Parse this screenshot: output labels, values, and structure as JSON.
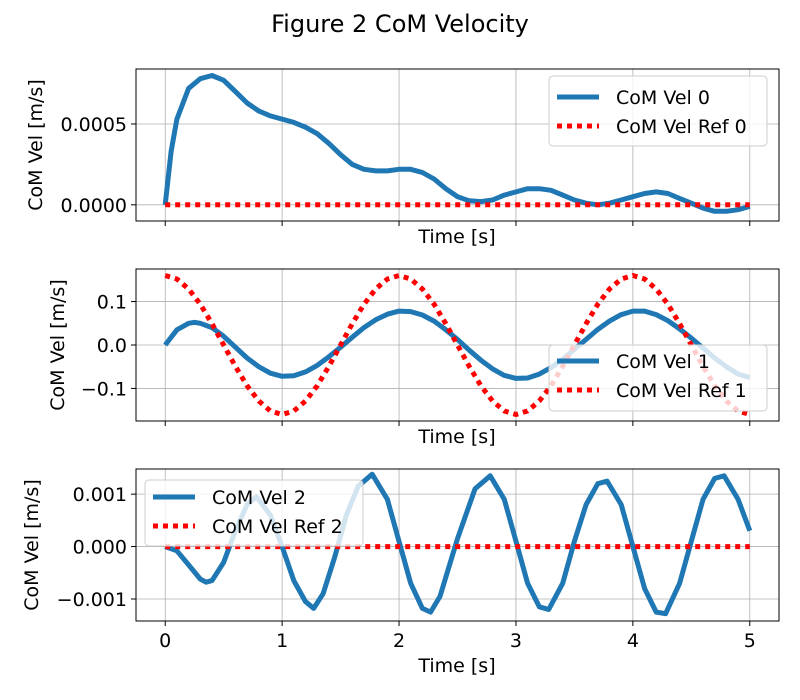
{
  "title": "Figure 2 CoM Velocity",
  "colors": {
    "measured": "#1f77b4",
    "reference": "#ff0000",
    "grid": "#b0b0b0"
  },
  "chart_data": [
    {
      "type": "line",
      "xlabel": "Time [s]",
      "ylabel": "CoM Vel [m/s]",
      "xlim": [
        -0.25,
        5.25
      ],
      "ylim": [
        -0.0001,
        0.00084
      ],
      "xticks": [
        0,
        1,
        2,
        3,
        4,
        5
      ],
      "show_xtick_labels": false,
      "yticks": [
        0.0,
        0.0005
      ],
      "ytick_labels": [
        "0.0000",
        "0.0005"
      ],
      "grid": true,
      "legend": "top-right",
      "series": [
        {
          "name": "CoM Vel 0",
          "style": "solid",
          "x": [
            0,
            0.05,
            0.1,
            0.2,
            0.3,
            0.4,
            0.5,
            0.6,
            0.7,
            0.8,
            0.9,
            1.0,
            1.1,
            1.2,
            1.3,
            1.4,
            1.5,
            1.6,
            1.7,
            1.8,
            1.9,
            2.0,
            2.1,
            2.2,
            2.3,
            2.4,
            2.5,
            2.6,
            2.7,
            2.8,
            2.9,
            3.0,
            3.1,
            3.2,
            3.3,
            3.4,
            3.5,
            3.6,
            3.7,
            3.8,
            3.9,
            4.0,
            4.1,
            4.2,
            4.3,
            4.4,
            4.5,
            4.6,
            4.7,
            4.8,
            4.9,
            5.0
          ],
          "y": [
            0.0,
            0.00033,
            0.00053,
            0.00072,
            0.00078,
            0.0008,
            0.00077,
            0.0007,
            0.00063,
            0.00058,
            0.00055,
            0.00053,
            0.00051,
            0.00048,
            0.00044,
            0.00038,
            0.00031,
            0.00025,
            0.00022,
            0.00021,
            0.00021,
            0.00022,
            0.00022,
            0.0002,
            0.00016,
            0.0001,
            5e-05,
            2.5e-05,
            2e-05,
            3e-05,
            6e-05,
            8e-05,
            0.0001,
            0.0001,
            9e-05,
            6e-05,
            3e-05,
            1e-05,
            0.0,
            1e-05,
            3e-05,
            5e-05,
            7e-05,
            8e-05,
            7e-05,
            4e-05,
            1e-05,
            -2e-05,
            -4e-05,
            -4e-05,
            -3e-05,
            -1e-05
          ]
        },
        {
          "name": "CoM Vel Ref 0",
          "style": "dotted",
          "x": [
            0,
            5
          ],
          "y": [
            0.0,
            0.0
          ]
        }
      ]
    },
    {
      "type": "line",
      "xlabel": "Time [s]",
      "ylabel": "CoM Vel [m/s]",
      "xlim": [
        -0.25,
        5.25
      ],
      "ylim": [
        -0.175,
        0.175
      ],
      "xticks": [
        0,
        1,
        2,
        3,
        4,
        5
      ],
      "show_xtick_labels": false,
      "yticks": [
        -0.1,
        0.0,
        0.1
      ],
      "ytick_labels": [
        "−0.1",
        "0.0",
        "0.1"
      ],
      "grid": true,
      "legend": "bottom-right",
      "series": [
        {
          "name": "CoM Vel 1",
          "style": "solid",
          "x": [
            0,
            0.1,
            0.2,
            0.25,
            0.3,
            0.4,
            0.5,
            0.6,
            0.7,
            0.8,
            0.9,
            1.0,
            1.1,
            1.2,
            1.3,
            1.4,
            1.5,
            1.6,
            1.7,
            1.8,
            1.9,
            2.0,
            2.1,
            2.2,
            2.3,
            2.4,
            2.5,
            2.6,
            2.7,
            2.8,
            2.9,
            3.0,
            3.1,
            3.2,
            3.3,
            3.4,
            3.5,
            3.6,
            3.7,
            3.8,
            3.9,
            4.0,
            4.1,
            4.2,
            4.3,
            4.4,
            4.5,
            4.6,
            4.7,
            4.8,
            4.9,
            5.0
          ],
          "y": [
            0.0,
            0.035,
            0.05,
            0.052,
            0.05,
            0.04,
            0.02,
            -0.005,
            -0.03,
            -0.05,
            -0.065,
            -0.072,
            -0.071,
            -0.062,
            -0.047,
            -0.027,
            -0.005,
            0.018,
            0.04,
            0.058,
            0.071,
            0.078,
            0.077,
            0.069,
            0.055,
            0.035,
            0.013,
            -0.012,
            -0.035,
            -0.055,
            -0.07,
            -0.077,
            -0.076,
            -0.067,
            -0.052,
            -0.033,
            -0.01,
            0.013,
            0.036,
            0.055,
            0.07,
            0.078,
            0.078,
            0.07,
            0.056,
            0.037,
            0.016,
            -0.007,
            -0.03,
            -0.05,
            -0.067,
            -0.075
          ]
        },
        {
          "name": "CoM Vel Ref 1",
          "style": "dotted",
          "x": [
            0,
            0.1,
            0.2,
            0.3,
            0.4,
            0.5,
            0.6,
            0.7,
            0.8,
            0.9,
            1.0,
            1.1,
            1.2,
            1.3,
            1.4,
            1.5,
            1.6,
            1.7,
            1.8,
            1.9,
            2.0,
            2.1,
            2.2,
            2.3,
            2.4,
            2.5,
            2.6,
            2.7,
            2.8,
            2.9,
            3.0,
            3.1,
            3.2,
            3.3,
            3.4,
            3.5,
            3.6,
            3.7,
            3.8,
            3.9,
            4.0,
            4.1,
            4.2,
            4.3,
            4.4,
            4.5,
            4.6,
            4.7,
            4.8,
            4.9,
            5.0
          ],
          "y": [
            0.16,
            0.152,
            0.129,
            0.094,
            0.049,
            0.0,
            -0.049,
            -0.094,
            -0.129,
            -0.152,
            -0.16,
            -0.152,
            -0.129,
            -0.094,
            -0.049,
            0.0,
            0.049,
            0.094,
            0.129,
            0.152,
            0.16,
            0.152,
            0.129,
            0.094,
            0.049,
            0.0,
            -0.049,
            -0.094,
            -0.129,
            -0.152,
            -0.16,
            -0.152,
            -0.129,
            -0.094,
            -0.049,
            0.0,
            0.049,
            0.094,
            0.129,
            0.152,
            0.16,
            0.152,
            0.129,
            0.094,
            0.049,
            0.0,
            -0.049,
            -0.094,
            -0.129,
            -0.152,
            -0.16
          ]
        }
      ]
    },
    {
      "type": "line",
      "xlabel": "Time [s]",
      "ylabel": "CoM Vel [m/s]",
      "xlim": [
        -0.25,
        5.25
      ],
      "ylim": [
        -0.00142,
        0.00148
      ],
      "xticks": [
        0,
        1,
        2,
        3,
        4,
        5
      ],
      "xtick_labels": [
        "0",
        "1",
        "2",
        "3",
        "4",
        "5"
      ],
      "show_xtick_labels": true,
      "yticks": [
        -0.001,
        0.0,
        0.001
      ],
      "ytick_labels": [
        "−0.001",
        "0.000",
        "0.001"
      ],
      "grid": true,
      "legend": "top-left",
      "series": [
        {
          "name": "CoM Vel 2",
          "style": "solid",
          "x": [
            0,
            0.1,
            0.2,
            0.3,
            0.35,
            0.4,
            0.5,
            0.6,
            0.7,
            0.78,
            0.9,
            1.0,
            1.1,
            1.2,
            1.27,
            1.35,
            1.45,
            1.55,
            1.65,
            1.77,
            1.9,
            2.0,
            2.1,
            2.2,
            2.27,
            2.35,
            2.5,
            2.65,
            2.78,
            2.9,
            3.0,
            3.1,
            3.2,
            3.28,
            3.4,
            3.5,
            3.6,
            3.7,
            3.78,
            3.9,
            4.0,
            4.1,
            4.2,
            4.28,
            4.4,
            4.5,
            4.6,
            4.7,
            4.78,
            4.9,
            5.0
          ],
          "y": [
            0.0,
            -8e-05,
            -0.00035,
            -0.00062,
            -0.00068,
            -0.00065,
            -0.0003,
            0.0003,
            0.0008,
            0.00095,
            0.0006,
            0.0,
            -0.00065,
            -0.00105,
            -0.00118,
            -0.0009,
            -0.0002,
            0.0006,
            0.00115,
            0.00138,
            0.0009,
            0.0001,
            -0.0007,
            -0.00118,
            -0.00125,
            -0.00095,
            0.00015,
            0.0011,
            0.00135,
            0.0009,
            0.0001,
            -0.0007,
            -0.00115,
            -0.0012,
            -0.0007,
            0.0001,
            0.0008,
            0.0012,
            0.00125,
            0.0008,
            0.0,
            -0.0008,
            -0.00125,
            -0.00128,
            -0.0007,
            0.0001,
            0.0009,
            0.0013,
            0.00135,
            0.0009,
            0.0003
          ]
        },
        {
          "name": "CoM Vel Ref 2",
          "style": "dotted",
          "x": [
            0,
            5
          ],
          "y": [
            0.0,
            0.0
          ]
        }
      ]
    }
  ]
}
